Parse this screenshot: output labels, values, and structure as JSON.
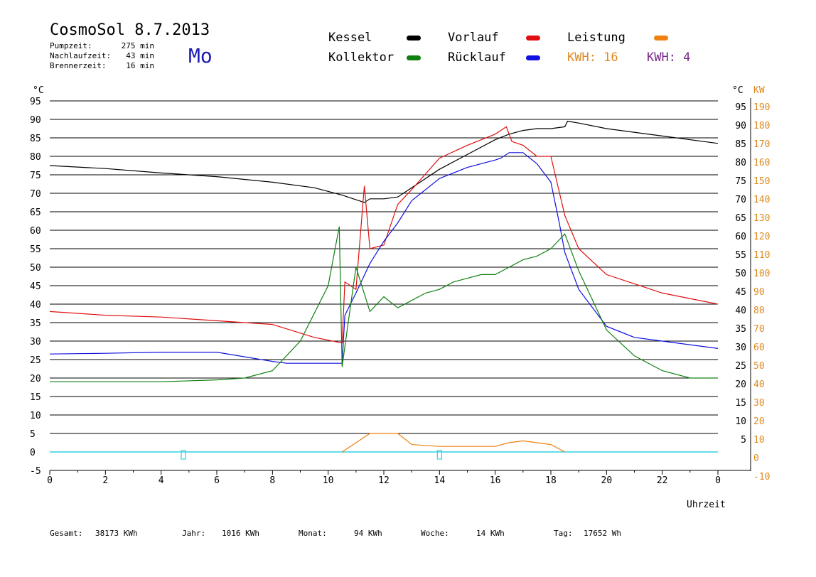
{
  "header": {
    "title": "CosmoSol 8.7.2013",
    "weekday": "Mo",
    "stats": [
      {
        "label": "Pumpzeit:",
        "value": "275 min"
      },
      {
        "label": "Nachlaufzeit:",
        "value": "43 min"
      },
      {
        "label": "Brennerzeit:",
        "value": "16 min"
      }
    ]
  },
  "legend": {
    "kessel": {
      "label": "Kessel",
      "color": "#000000"
    },
    "vorlauf": {
      "label": "Vorlauf",
      "color": "#e01010"
    },
    "leistung": {
      "label": "Leistung",
      "color": "#f08010"
    },
    "kollektor": {
      "label": "Kollektor",
      "color": "#108010"
    },
    "ruecklauf": {
      "label": "Rücklauf",
      "color": "#1010e0"
    },
    "kwh1": {
      "label": "KWH: 16",
      "color": "#e08a20"
    },
    "kwh2": {
      "label": "KWH: 4",
      "color": "#7a2a8a"
    }
  },
  "footer": {
    "gesamt_label": "Gesamt:",
    "gesamt_value": "38173 KWh",
    "jahr_label": "Jahr:",
    "jahr_value": "1016 KWh",
    "monat_label": "Monat:",
    "monat_value": "94 KWh",
    "woche_label": "Woche:",
    "woche_value": "14 KWh",
    "tag_label": "Tag:",
    "tag_value": "17652 Wh"
  },
  "chart_data": {
    "type": "line",
    "xlabel": "Uhrzeit",
    "ylabel_left": "°C",
    "ylabel_right_1": "°C",
    "ylabel_right_2": "KW",
    "xlim": [
      0,
      24
    ],
    "ylim": [
      -5,
      95
    ],
    "x_ticks": [
      "0",
      "2",
      "4",
      "6",
      "8",
      "10",
      "12",
      "14",
      "16",
      "18",
      "20",
      "22",
      "0"
    ],
    "y_ticks_left": [
      "95",
      "90",
      "85",
      "80",
      "75",
      "70",
      "65",
      "60",
      "55",
      "50",
      "45",
      "40",
      "35",
      "30",
      "25",
      "20",
      "15",
      "10",
      "5",
      "0",
      "-5"
    ],
    "y_ticks_right_c": [
      "95",
      "90",
      "85",
      "80",
      "75",
      "70",
      "65",
      "60",
      "55",
      "50",
      "45",
      "40",
      "35",
      "30",
      "25",
      "20",
      "15",
      "10",
      "5"
    ],
    "y_ticks_right_kw": [
      "190",
      "180",
      "170",
      "160",
      "150",
      "140",
      "130",
      "120",
      "110",
      "100",
      "90",
      "80",
      "70",
      "60",
      "50",
      "40",
      "30",
      "20",
      "10",
      "0",
      "-10"
    ],
    "grid": true,
    "baseline_color": "#30d0e0",
    "series": [
      {
        "name": "Kessel",
        "color": "#000000",
        "x": [
          0,
          2,
          4,
          6,
          8,
          9.5,
          10.5,
          11.3,
          11.5,
          12.0,
          12.5,
          13.0,
          14.0,
          15.0,
          16.0,
          16.5,
          17.0,
          17.5,
          18.0,
          18.5,
          18.6,
          19.0,
          20.0,
          22.0,
          24.0
        ],
        "y": [
          77.5,
          76.7,
          75.5,
          74.5,
          73,
          71.5,
          69.5,
          67.5,
          68.5,
          68.5,
          69,
          71.5,
          76.5,
          80.5,
          84.5,
          86,
          87,
          87.5,
          87.5,
          88,
          89.5,
          89,
          87.5,
          85.5,
          83.5
        ]
      },
      {
        "name": "Vorlauf",
        "color": "#e01010",
        "x": [
          0,
          2,
          4,
          6,
          8,
          9.5,
          10.5,
          10.6,
          11.0,
          11.3,
          11.5,
          12.0,
          12.5,
          13.0,
          14.0,
          15.0,
          16.0,
          16.4,
          16.6,
          17.0,
          17.5,
          18.0,
          18.5,
          19.0,
          20.0,
          22.0,
          24.0
        ],
        "y": [
          38,
          37,
          36.5,
          35.5,
          34.5,
          31,
          29.5,
          46,
          44,
          72,
          55,
          56,
          67,
          71,
          79.5,
          83,
          86,
          88,
          84,
          83,
          80,
          80,
          64,
          55,
          48,
          43,
          40
        ]
      },
      {
        "name": "Rücklauf",
        "color": "#1010e0",
        "x": [
          0,
          2,
          4,
          6,
          8,
          8.5,
          10.5,
          10.6,
          11.0,
          11.5,
          12.0,
          12.5,
          13.0,
          14.0,
          15.0,
          16.0,
          16.2,
          16.5,
          17.0,
          17.5,
          18.0,
          18.3,
          18.5,
          19.0,
          20.0,
          21.0,
          22.0,
          24.0
        ],
        "y": [
          26.5,
          26.7,
          27,
          27,
          24.5,
          24,
          24,
          37,
          43,
          51,
          57,
          62,
          68,
          74,
          77,
          79,
          79.5,
          81,
          81,
          78,
          73,
          62,
          54,
          44,
          34,
          31,
          30,
          28
        ]
      },
      {
        "name": "Kollektor",
        "color": "#108010",
        "x": [
          0,
          2,
          4,
          6,
          7,
          8,
          9,
          10,
          10.4,
          10.5,
          10.7,
          11.0,
          11.5,
          12.0,
          12.5,
          13.0,
          13.5,
          14.0,
          14.5,
          15.0,
          15.5,
          16.0,
          16.5,
          17.0,
          17.5,
          18.0,
          18.5,
          19.0,
          19.5,
          20.0,
          21.0,
          22.0,
          23.0,
          24.0
        ],
        "y": [
          19,
          19,
          19,
          19.5,
          20,
          22,
          30,
          45,
          61,
          23,
          34,
          50,
          38,
          42,
          39,
          41,
          43,
          44,
          46,
          47,
          48,
          48,
          50,
          52,
          53,
          55,
          59,
          49,
          41,
          33,
          26,
          22,
          20,
          20
        ]
      },
      {
        "name": "Leistung",
        "color": "#f08010",
        "x": [
          10.5,
          11.0,
          11.5,
          12.0,
          12.5,
          13.0,
          14.0,
          15.0,
          16.0,
          16.5,
          17.0,
          17.5,
          18.0,
          18.5
        ],
        "y": [
          0,
          2.5,
          5,
          5,
          5,
          2,
          1.5,
          1.5,
          1.5,
          2.5,
          3,
          2.5,
          2,
          0
        ]
      }
    ]
  }
}
